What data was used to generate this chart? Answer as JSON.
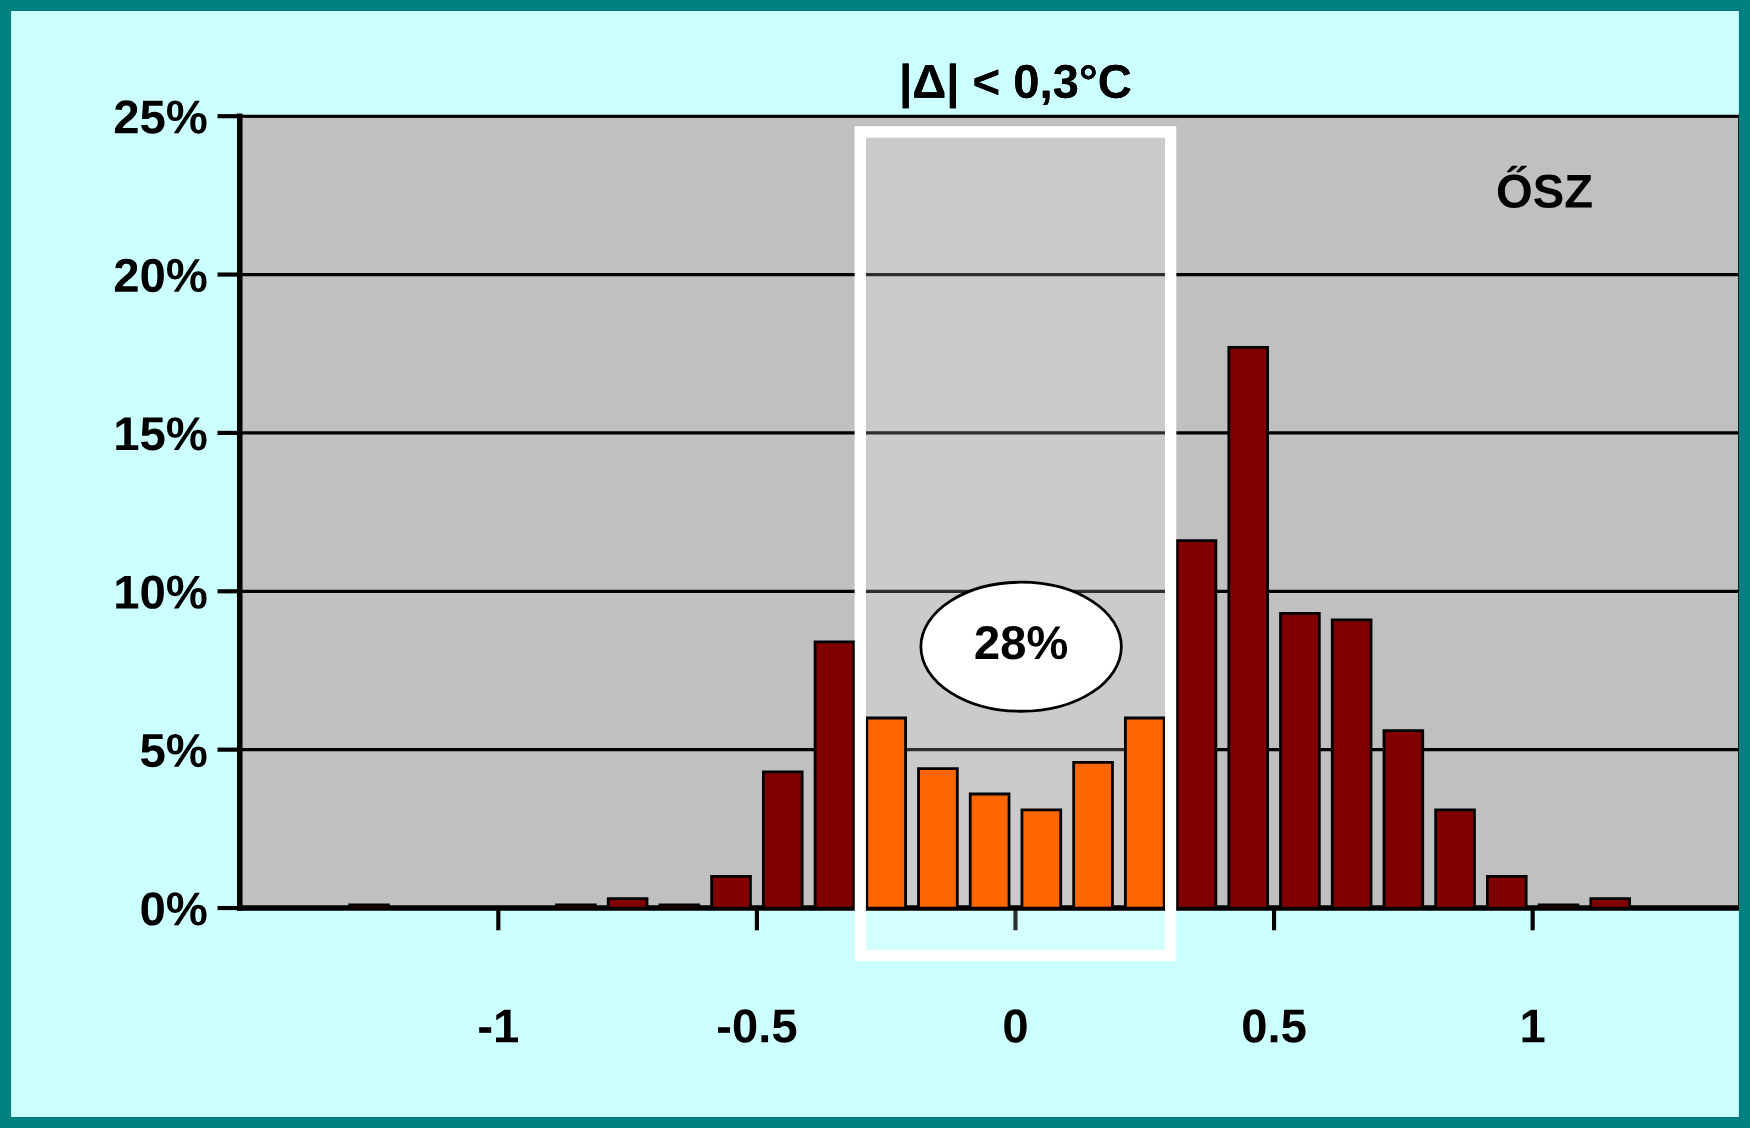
{
  "chart_data": {
    "type": "histogram",
    "title": "ŐSZ",
    "bins": [
      -1.3,
      -1.2,
      -1.1,
      -1.0,
      -0.9,
      -0.8,
      -0.7,
      -0.6,
      -0.5,
      -0.4,
      -0.3,
      -0.2,
      -0.1,
      0.0,
      0.1,
      0.2,
      0.3,
      0.4,
      0.5,
      0.6,
      0.7,
      0.8,
      0.9,
      1.0,
      1.1,
      1.2
    ],
    "values": [
      0.1,
      0,
      0,
      0,
      0.1,
      0.3,
      0.1,
      1.0,
      4.3,
      8.4,
      6.0,
      4.4,
      3.6,
      3.1,
      4.6,
      6.0,
      11.6,
      17.7,
      9.3,
      9.1,
      5.6,
      3.1,
      1.0,
      0.1,
      0.3
    ],
    "colors": [
      "#800000",
      "#800000",
      "#800000",
      "#800000",
      "#800000",
      "#800000",
      "#800000",
      "#800000",
      "#800000",
      "#800000",
      "#ff6600",
      "#ff6600",
      "#ff6600",
      "#ff6600",
      "#ff6600",
      "#ff6600",
      "#800000",
      "#800000",
      "#800000",
      "#800000",
      "#800000",
      "#800000",
      "#800000",
      "#800000",
      "#800000"
    ],
    "xlim": [
      -1.5,
      1.4
    ],
    "xticks": [
      {
        "value": -1,
        "label": "-1"
      },
      {
        "value": -0.5,
        "label": "-0.5"
      },
      0,
      0.5,
      1
    ],
    "ylim": [
      0,
      25
    ],
    "yticks": [
      {
        "value": 0,
        "label": "0%"
      },
      {
        "value": 5,
        "label": "5%"
      },
      {
        "value": 10,
        "label": "10%"
      },
      {
        "value": 15,
        "label": "15%"
      },
      {
        "value": 20,
        "label": "20%"
      },
      {
        "value": 25,
        "label": "25%"
      }
    ],
    "grid": "y",
    "bands": [
      {
        "axis": "x",
        "from": -0.3,
        "to": 0.3,
        "label": "|Δ| < 0,3°C",
        "color": "#ffffff"
      }
    ],
    "annotations": [
      "28%"
    ]
  }
}
